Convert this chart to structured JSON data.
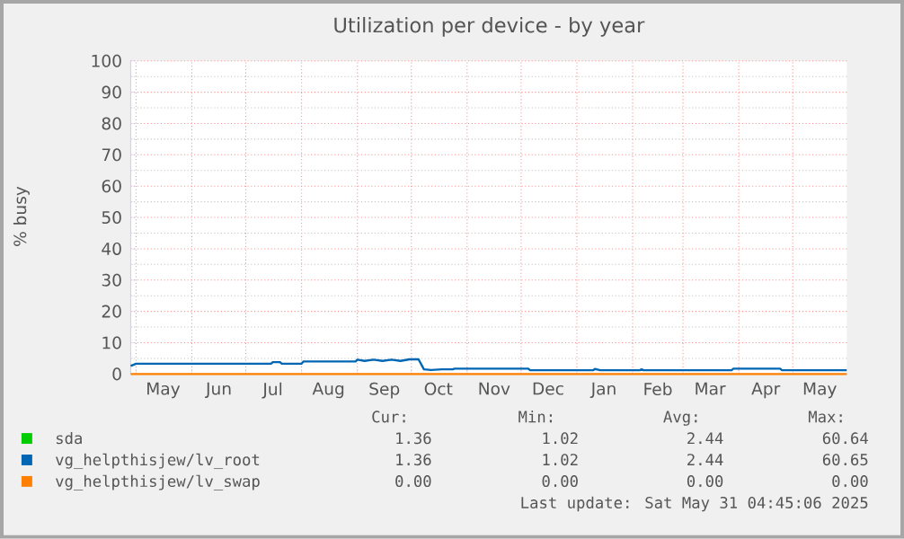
{
  "chart_data": {
    "type": "line",
    "title": "Utilization per device - by year",
    "ylabel": "% busy",
    "xlim": [
      "2024-04-28",
      "2025-05-31"
    ],
    "ylim": [
      0,
      100
    ],
    "yticks": [
      0,
      10,
      20,
      30,
      40,
      50,
      60,
      70,
      80,
      90,
      100
    ],
    "xticks": [
      {
        "value": "2024-05-01",
        "label": null
      },
      {
        "value": "2024-06-01",
        "label": null
      },
      {
        "value": "2024-07-01",
        "label": null
      },
      {
        "value": "2024-08-01",
        "label": null
      },
      {
        "value": "2024-09-01",
        "label": null
      },
      {
        "value": "2024-10-01",
        "label": null
      },
      {
        "value": "2024-11-01",
        "label": null
      },
      {
        "value": "2024-12-01",
        "label": null
      },
      {
        "value": "2025-01-01",
        "label": null
      },
      {
        "value": "2025-02-01",
        "label": null
      },
      {
        "value": "2025-03-01",
        "label": null
      },
      {
        "value": "2025-04-01",
        "label": null
      },
      {
        "value": "2025-05-01",
        "label": null
      },
      {
        "value": "2024-05-16",
        "label": "May"
      },
      {
        "value": "2024-06-16",
        "label": "Jun"
      },
      {
        "value": "2024-07-16",
        "label": "Jul"
      },
      {
        "value": "2024-08-16",
        "label": "Aug"
      },
      {
        "value": "2024-09-16",
        "label": "Sep"
      },
      {
        "value": "2024-10-16",
        "label": "Oct"
      },
      {
        "value": "2024-11-16",
        "label": "Nov"
      },
      {
        "value": "2024-12-16",
        "label": "Dec"
      },
      {
        "value": "2025-01-16",
        "label": "Jan"
      },
      {
        "value": "2025-02-15",
        "label": "Feb"
      },
      {
        "value": "2025-03-16",
        "label": "Mar"
      },
      {
        "value": "2025-04-16",
        "label": "Apr"
      },
      {
        "value": "2025-05-16",
        "label": "May"
      }
    ],
    "grid": true,
    "legend": "bottom",
    "marker": "none",
    "line_style": "solid",
    "series": [
      {
        "name": "sda",
        "color": "#00cc00"
      },
      {
        "name": "vg_helpthisjew/lv_root",
        "color": "#0066b3",
        "x": [
          "2024-04-28",
          "2024-05-01",
          "2024-07-15",
          "2024-07-16",
          "2024-07-20",
          "2024-07-21",
          "2024-08-01",
          "2024-08-02",
          "2024-08-31",
          "2024-09-01",
          "2024-09-05",
          "2024-09-10",
          "2024-09-15",
          "2024-09-20",
          "2024-09-25",
          "2024-09-30",
          "2024-10-05",
          "2024-10-08",
          "2024-10-12",
          "2024-10-18",
          "2024-10-24",
          "2024-10-25",
          "2024-12-05",
          "2024-12-06",
          "2025-01-10",
          "2025-01-11",
          "2025-01-14",
          "2025-02-05",
          "2025-02-06",
          "2025-02-07",
          "2025-03-28",
          "2025-03-29",
          "2025-04-24",
          "2025-04-25",
          "2025-05-31"
        ],
        "values": [
          2.6,
          3.3,
          3.3,
          3.8,
          3.8,
          3.3,
          3.3,
          4.0,
          4.0,
          4.6,
          4.2,
          4.6,
          4.2,
          4.6,
          4.2,
          4.7,
          4.7,
          1.5,
          1.3,
          1.5,
          1.5,
          1.7,
          1.7,
          1.2,
          1.2,
          1.6,
          1.2,
          1.2,
          1.5,
          1.2,
          1.2,
          1.7,
          1.7,
          1.2,
          1.2
        ]
      },
      {
        "name": "vg_helpthisjew/lv_swap",
        "color": "#ff8000",
        "x": [
          "2024-04-28",
          "2025-05-31"
        ],
        "values": [
          0,
          0
        ]
      }
    ],
    "annotations": [
      "Cur:",
      "Min:",
      "Avg:",
      "Max:",
      "1.36",
      "1.02",
      "2.44",
      "60.64",
      "1.36",
      "1.02",
      "2.44",
      "60.65",
      "0.00",
      "0.00",
      "0.00",
      "0.00",
      "Last update: Sat May 31 04:45:06 2025"
    ]
  }
}
